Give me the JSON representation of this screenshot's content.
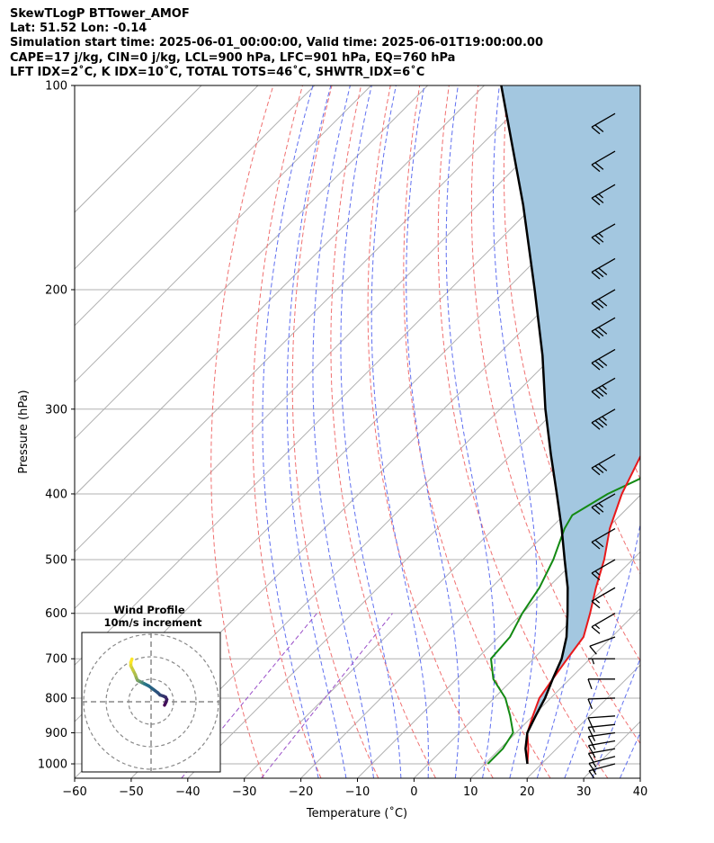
{
  "header": {
    "line1": "SkewTLogP BTTower_AMOF",
    "line2": "Lat: 51.52   Lon: -0.14",
    "line3": "Simulation start time: 2025-06-01_00:00:00, Valid time: 2025-06-01T19:00:00.00",
    "line4": "CAPE=17 j/kg, CIN=0 j/kg, LCL=900 hPa, LFC=901 hPa, EQ=760 hPa",
    "line5": "LFT IDX=2˚C, K IDX=10˚C, TOTAL TOTS=46˚C, SHWTR_IDX=6˚C"
  },
  "chart_data": {
    "type": "line",
    "xlabel": "Temperature (˚C)",
    "ylabel": "Pressure (hPa)",
    "xlim": [
      -60,
      40
    ],
    "ylim": [
      1050,
      100
    ],
    "y_scale": "log",
    "skew": true,
    "x_ticks": [
      "−60",
      "−50",
      "−40",
      "−30",
      "−20",
      "−10",
      "0",
      "10",
      "20",
      "30",
      "40"
    ],
    "y_ticks": [
      "100",
      "200",
      "300",
      "400",
      "500",
      "600",
      "700",
      "800",
      "900",
      "1000"
    ],
    "grid": true,
    "colors": {
      "temperature": "#e8191b",
      "dewpoint": "#138a13",
      "parcel": "#000000",
      "cape_fill": "#a3c7e0",
      "dry_adiabats": "#f07070",
      "moist_adiabats": "#5f6ff0",
      "mixing_ratio": "#9a4ec8",
      "isotherms": "#b0b0b0"
    },
    "series": [
      {
        "key": "temperature",
        "p": [
          1000,
          950,
          900,
          850,
          800,
          750,
          700,
          650,
          600,
          550,
          500,
          450,
          400,
          350,
          300,
          270,
          250,
          220,
          200,
          180,
          160,
          140,
          120,
          100
        ],
        "t": [
          17.5,
          15,
          12,
          10,
          8,
          7,
          6,
          5,
          2,
          -1.5,
          -5,
          -9.5,
          -13.5,
          -17,
          -21,
          -25,
          -27.5,
          -32,
          -35,
          -38.5,
          -41.5,
          -44,
          -47,
          -49.5
        ]
      },
      {
        "key": "dewpoint",
        "p": [
          1000,
          950,
          900,
          850,
          800,
          750,
          700,
          650,
          600,
          550,
          500,
          450,
          430,
          400,
          380,
          350,
          330,
          300,
          270,
          250,
          230,
          210,
          200,
          180,
          160,
          140,
          120,
          100
        ],
        "t": [
          10.5,
          10.5,
          9.5,
          6,
          2,
          -3.5,
          -7.5,
          -8,
          -10,
          -11.5,
          -14,
          -17.5,
          -18.5,
          -16,
          -13,
          -15,
          -18,
          -18,
          -18,
          -17.5,
          -18,
          -21,
          -24,
          -27.5,
          -28,
          -29,
          -31,
          -33
        ]
      },
      {
        "key": "parcel",
        "p": [
          1000,
          950,
          900,
          850,
          800,
          750,
          700,
          650,
          600,
          550,
          500,
          450,
          400,
          350,
          300,
          250,
          200,
          150,
          100
        ],
        "t": [
          17.5,
          14.5,
          12,
          10.5,
          9,
          7,
          5,
          2,
          -2,
          -6.5,
          -12,
          -18,
          -25,
          -33,
          -42,
          -52,
          -65,
          -82,
          -107
        ]
      }
    ],
    "hodograph": {
      "title": "Wind Profile",
      "subtitle": "10m/s increment",
      "ring_step": 10,
      "rings": [
        1,
        2,
        3
      ],
      "u": [
        6,
        6.5,
        7,
        6.5,
        5.5,
        4,
        3,
        1,
        -1,
        -3,
        -4,
        -5,
        -6,
        -6.5,
        -7,
        -8,
        -9,
        -9,
        -8.5
      ],
      "v": [
        -1.5,
        -0.5,
        1,
        2,
        2.5,
        3,
        4,
        5.5,
        7,
        8,
        8.5,
        9,
        9.5,
        10.5,
        12,
        14,
        16,
        17.5,
        19
      ]
    },
    "wind_barbs": [
      {
        "p": 1000,
        "speed": 15,
        "dir": 255
      },
      {
        "p": 975,
        "speed": 15,
        "dir": 255
      },
      {
        "p": 950,
        "speed": 15,
        "dir": 260
      },
      {
        "p": 925,
        "speed": 15,
        "dir": 260
      },
      {
        "p": 900,
        "speed": 15,
        "dir": 262
      },
      {
        "p": 875,
        "speed": 15,
        "dir": 264
      },
      {
        "p": 850,
        "speed": 10,
        "dir": 266
      },
      {
        "p": 800,
        "speed": 10,
        "dir": 268
      },
      {
        "p": 750,
        "speed": 10,
        "dir": 270
      },
      {
        "p": 700,
        "speed": 5,
        "dir": 270
      },
      {
        "p": 650,
        "speed": 10,
        "dir": 250
      },
      {
        "p": 600,
        "speed": 15,
        "dir": 240
      },
      {
        "p": 550,
        "speed": 15,
        "dir": 240
      },
      {
        "p": 500,
        "speed": 15,
        "dir": 240
      },
      {
        "p": 450,
        "speed": 20,
        "dir": 240
      },
      {
        "p": 400,
        "speed": 25,
        "dir": 240
      },
      {
        "p": 350,
        "speed": 30,
        "dir": 240
      },
      {
        "p": 300,
        "speed": 35,
        "dir": 240
      },
      {
        "p": 270,
        "speed": 35,
        "dir": 240
      },
      {
        "p": 245,
        "speed": 30,
        "dir": 240
      },
      {
        "p": 220,
        "speed": 30,
        "dir": 240
      },
      {
        "p": 200,
        "speed": 30,
        "dir": 240
      },
      {
        "p": 180,
        "speed": 30,
        "dir": 240
      },
      {
        "p": 160,
        "speed": 25,
        "dir": 240
      },
      {
        "p": 140,
        "speed": 25,
        "dir": 240
      },
      {
        "p": 125,
        "speed": 20,
        "dir": 240
      },
      {
        "p": 110,
        "speed": 20,
        "dir": 240
      }
    ]
  }
}
